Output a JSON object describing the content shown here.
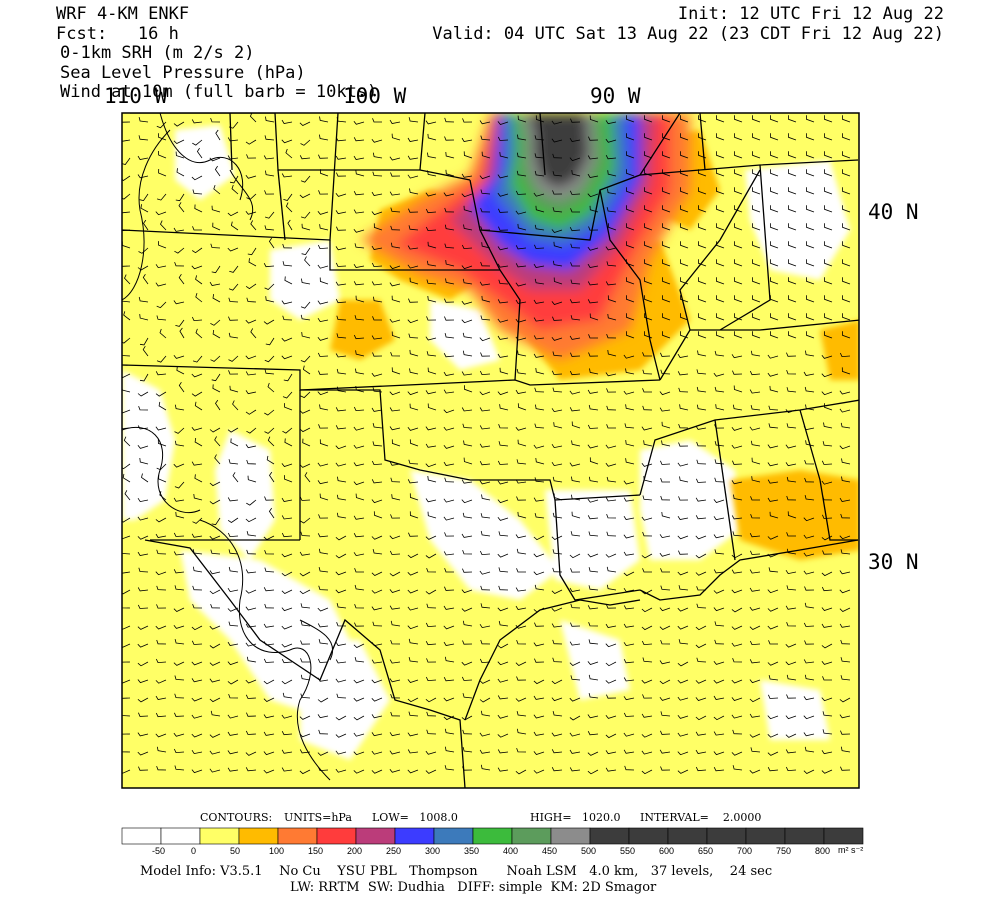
{
  "header": {
    "model": "WRF 4-KM ENKF",
    "forecast": "Fcst:   16 h",
    "field1": "0-1km SRH (m 2/s 2)",
    "field2": "Sea Level Pressure (hPa)",
    "field3": "Wind at 10m (full barb = 10kts)",
    "init": "Init: 12 UTC Fri 12 Aug 22",
    "valid": "Valid: 04 UTC Sat 13 Aug 22 (23 CDT Fri 12 Aug 22)"
  },
  "axes": {
    "lon_labels": [
      "110 W",
      "100 W",
      "90 W"
    ],
    "lat_labels": [
      "40 N",
      "30 N"
    ]
  },
  "contours": {
    "label": "CONTOURS:",
    "units": "UNITS=hPa",
    "low": "LOW=   1008.0",
    "high": "HIGH=   1020.0",
    "interval": "INTERVAL=    2.0000"
  },
  "colorbar": {
    "unit_label": "m² s⁻²",
    "ticks": [
      "-50",
      "0",
      "50",
      "100",
      "150",
      "200",
      "250",
      "300",
      "350",
      "400",
      "450",
      "500",
      "550",
      "600",
      "650",
      "700",
      "750",
      "800"
    ],
    "colors": [
      "#ffffff",
      "#ffffff",
      "#ffff66",
      "#ffbb00",
      "#ff7a33",
      "#ff3c3c",
      "#bb3c7a",
      "#3c3cff",
      "#3c7abb",
      "#3cbb3c",
      "#5c9c5c",
      "#8c8c8c",
      "#3c3c3c",
      "#3c3c3c",
      "#3c3c3c",
      "#3c3c3c",
      "#3c3c3c",
      "#3c3c3c",
      "#3c3c3c"
    ]
  },
  "footer": {
    "line1": "Model Info: V3.5.1    No Cu    YSU PBL   Thompson       Noah LSM   4.0 km,   37 levels,    24 sec",
    "line2": "LW: RRTM  SW: Dudhia   DIFF: simple  KM: 2D Smagor"
  },
  "map_colors": {
    "yellow": "#ffff66",
    "orange": "#ffbb00",
    "coral": "#ff7a33",
    "red": "#ff3c3c",
    "magenta": "#bb3c7a",
    "blue": "#3c3cff",
    "steel": "#3c7abb",
    "green": "#3cbb3c",
    "dkgreen": "#5c9c5c",
    "gray": "#8c8c8c",
    "dark": "#3c3c3c"
  }
}
